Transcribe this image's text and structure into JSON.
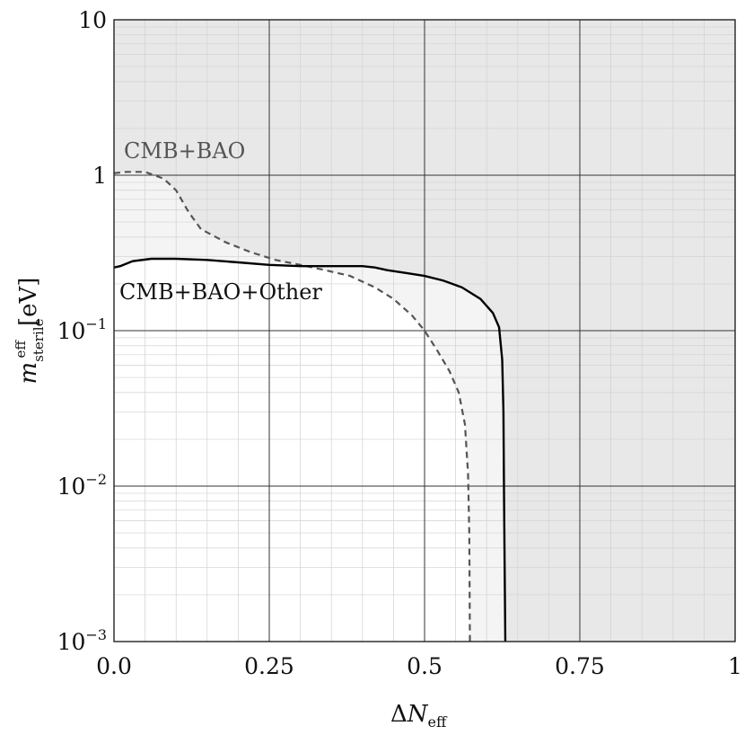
{
  "chart_data": {
    "type": "line",
    "title": "",
    "xlabel": "ΔN_eff",
    "ylabel": "m_sterile^eff [eV]",
    "x_scale": "linear",
    "y_scale": "log",
    "xlim": [
      0,
      1
    ],
    "ylim": [
      0.001,
      10
    ],
    "grid": true,
    "x_ticks": [
      "0.0",
      "0.25",
      "0.5",
      "0.75",
      "1"
    ],
    "x_tick_values": [
      0,
      0.25,
      0.5,
      0.75,
      1
    ],
    "y_ticks": [
      {
        "base": "10",
        "exp": "−3",
        "value": 0.001
      },
      {
        "base": "10",
        "exp": "−2",
        "value": 0.01
      },
      {
        "base": "10",
        "exp": "−1",
        "value": 0.1
      },
      {
        "base": "1",
        "exp": "",
        "value": 1
      },
      {
        "base": "10",
        "exp": "",
        "value": 10
      }
    ],
    "series": [
      {
        "name": "CMB+BAO",
        "style": "dashed",
        "color": "#555555",
        "x": [
          0.0,
          0.02,
          0.05,
          0.08,
          0.1,
          0.12,
          0.14,
          0.18,
          0.22,
          0.26,
          0.3,
          0.34,
          0.38,
          0.42,
          0.45,
          0.48,
          0.5,
          0.52,
          0.54,
          0.555,
          0.565,
          0.57,
          0.572,
          0.573
        ],
        "y": [
          1.03,
          1.05,
          1.05,
          0.95,
          0.8,
          0.58,
          0.45,
          0.37,
          0.32,
          0.285,
          0.265,
          0.245,
          0.225,
          0.19,
          0.16,
          0.125,
          0.1,
          0.075,
          0.055,
          0.04,
          0.025,
          0.012,
          0.005,
          0.001
        ]
      },
      {
        "name": "CMB+BAO+Other",
        "style": "solid",
        "color": "#000000",
        "x": [
          0.0,
          0.01,
          0.03,
          0.06,
          0.1,
          0.15,
          0.2,
          0.25,
          0.3,
          0.35,
          0.4,
          0.42,
          0.44,
          0.47,
          0.5,
          0.53,
          0.56,
          0.59,
          0.61,
          0.62,
          0.625,
          0.627,
          0.628,
          0.63
        ],
        "y": [
          0.255,
          0.26,
          0.28,
          0.29,
          0.29,
          0.285,
          0.275,
          0.265,
          0.26,
          0.26,
          0.26,
          0.255,
          0.245,
          0.235,
          0.225,
          0.21,
          0.19,
          0.16,
          0.13,
          0.105,
          0.065,
          0.03,
          0.008,
          0.001
        ]
      }
    ],
    "annotations": [
      {
        "text": "CMB+BAO",
        "color": "#555555"
      },
      {
        "text": "CMB+BAO+Other",
        "color": "#111111"
      }
    ],
    "region_colors": {
      "excluded": "#e8e8e8",
      "between": "#f4f4f4",
      "allowed": "#ffffff"
    }
  }
}
